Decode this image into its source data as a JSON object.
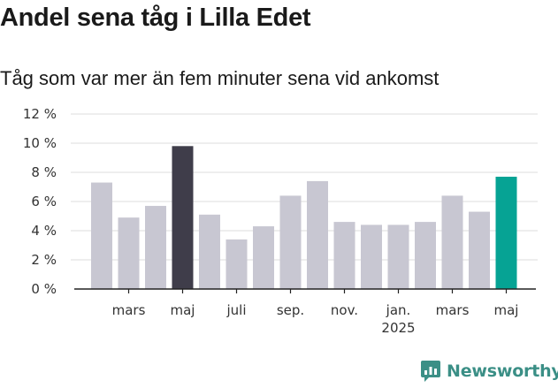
{
  "title": "Andel sena tåg i Lilla Edet",
  "subtitle": "Tåg som var mer än fem minuter sena vid ankomst",
  "brand": {
    "name": "Newsworthy",
    "icon": "newsworthy-logo-icon"
  },
  "colors": {
    "default_bar": "#c8c7d2",
    "highlight_bar": "#3f3d4a",
    "latest_bar": "#06a394",
    "brand": "#3b8f86",
    "grid": "#dddddd"
  },
  "chart_data": {
    "type": "bar",
    "categories": [
      "2024-02",
      "2024-03",
      "2024-04",
      "2024-05",
      "2024-06",
      "2024-07",
      "2024-08",
      "2024-09",
      "2024-10",
      "2024-11",
      "2024-12",
      "2025-01",
      "2025-02",
      "2025-03",
      "2025-04",
      "2025-05"
    ],
    "values": [
      7.3,
      4.9,
      5.7,
      9.8,
      5.1,
      3.4,
      4.3,
      6.4,
      7.4,
      4.6,
      4.4,
      4.4,
      4.6,
      6.4,
      5.3,
      7.7
    ],
    "highlight": [
      "default",
      "default",
      "default",
      "dark",
      "default",
      "default",
      "default",
      "default",
      "default",
      "default",
      "default",
      "default",
      "default",
      "default",
      "default",
      "teal"
    ],
    "ylim": [
      0,
      12
    ],
    "yticks": [
      0,
      2,
      4,
      6,
      8,
      10,
      12
    ],
    "ytick_labels": [
      "0 %",
      "2 %",
      "4 %",
      "6 %",
      "8 %",
      "10 %",
      "12 %"
    ],
    "xtick_labels": [
      {
        "category": "2024-03",
        "label": "mars"
      },
      {
        "category": "2024-05",
        "label": "maj"
      },
      {
        "category": "2024-07",
        "label": "juli"
      },
      {
        "category": "2024-09",
        "label": "sep."
      },
      {
        "category": "2024-11",
        "label": "nov."
      },
      {
        "category": "2025-01",
        "label": "jan.",
        "sublabel": "2025"
      },
      {
        "category": "2025-03",
        "label": "mars"
      },
      {
        "category": "2025-05",
        "label": "maj"
      }
    ],
    "grid": true,
    "legend": "none"
  }
}
